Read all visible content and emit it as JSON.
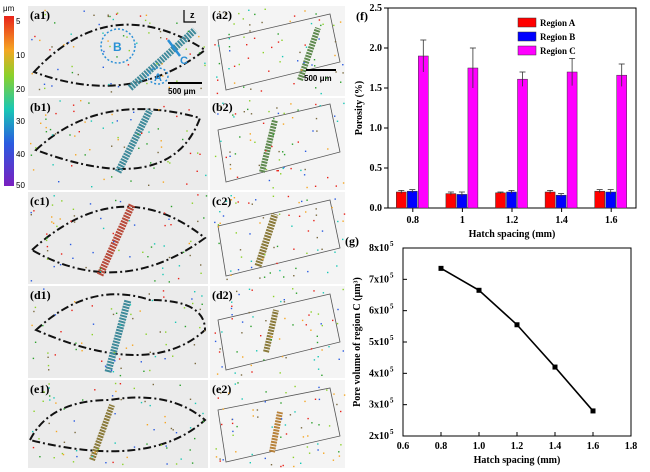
{
  "images": {
    "panels_left": [
      "(a1)",
      "(b1)",
      "(c1)",
      "(d1)",
      "(e1)"
    ],
    "panels_right": [
      "(a2)",
      "(b2)",
      "(c2)",
      "(d2)",
      "(e2)"
    ],
    "region_labels": [
      "B",
      "A",
      "C"
    ],
    "axis_label": "z",
    "scale_bar_1": "500 μm",
    "scale_bar_2": "500 μm"
  },
  "colorbar": {
    "unit": "μm",
    "ticks": [
      "5",
      "10",
      "20",
      "30",
      "40",
      "50"
    ]
  },
  "chart_data": [
    {
      "panel": "(f)",
      "type": "bar",
      "categories": [
        "0.8",
        "1",
        "1.2",
        "1.4",
        "1.6"
      ],
      "series": [
        {
          "name": "Region A",
          "color": "#ff0000",
          "values": [
            0.2,
            0.18,
            0.19,
            0.2,
            0.21
          ],
          "errors": [
            0.02,
            0.02,
            0.01,
            0.02,
            0.02
          ]
        },
        {
          "name": "Region B",
          "color": "#0000ff",
          "values": [
            0.21,
            0.17,
            0.2,
            0.16,
            0.2
          ],
          "errors": [
            0.02,
            0.03,
            0.02,
            0.02,
            0.03
          ]
        },
        {
          "name": "Region C",
          "color": "#ff00ff",
          "values": [
            1.9,
            1.75,
            1.61,
            1.7,
            1.66
          ],
          "errors": [
            0.2,
            0.25,
            0.09,
            0.17,
            0.14
          ]
        }
      ],
      "xlabel": "Hatch spacing (mm)",
      "ylabel": "Porosity (%)",
      "ylim": [
        0,
        2.5
      ],
      "yticks": [
        "0.0",
        "0.5",
        "1.0",
        "1.5",
        "2.0",
        "2.5"
      ],
      "legend": "top-right"
    },
    {
      "panel": "(g)",
      "type": "line",
      "x": [
        0.8,
        1.0,
        1.2,
        1.4,
        1.6
      ],
      "y": [
        735000,
        665000,
        555000,
        420000,
        280000
      ],
      "xlabel": "Hatch spacing (mm)",
      "ylabel": "Pore volume of region C (μm³)",
      "xlim": [
        0.6,
        1.8
      ],
      "ylim": [
        200000,
        800000
      ],
      "xticks": [
        "0.6",
        "0.8",
        "1.0",
        "1.2",
        "1.4",
        "1.6",
        "1.8"
      ],
      "ytick_mantissas": [
        "2x10",
        "3x10",
        "4x10",
        "5x10",
        "6x10",
        "7x10",
        "8x10"
      ],
      "ytick_exponent": "5"
    }
  ]
}
